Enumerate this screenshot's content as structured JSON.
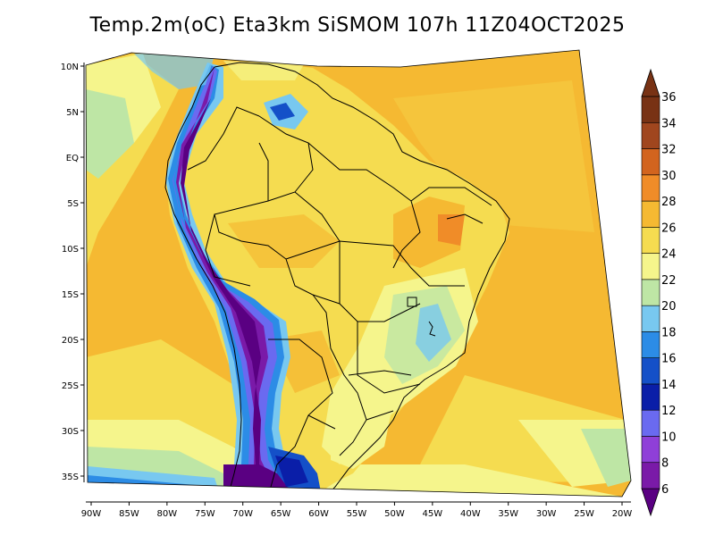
{
  "title": "Temp.2m(oC) Eta3km SiSMOM 107h 11Z04OCT2025",
  "chart_data": {
    "type": "heatmap",
    "title": "Temp.2m(oC) Eta3km SiSMOM 107h 11Z04OCT2025",
    "xlabel": "",
    "ylabel": "",
    "x_range": [
      -91,
      -20
    ],
    "y_range": [
      -38,
      12
    ],
    "x_ticks": [
      {
        "lon": -90,
        "label": "90W"
      },
      {
        "lon": -85,
        "label": "85W"
      },
      {
        "lon": -80,
        "label": "80W"
      },
      {
        "lon": -75,
        "label": "75W"
      },
      {
        "lon": -70,
        "label": "70W"
      },
      {
        "lon": -65,
        "label": "65W"
      },
      {
        "lon": -60,
        "label": "60W"
      },
      {
        "lon": -55,
        "label": "55W"
      },
      {
        "lon": -50,
        "label": "50W"
      },
      {
        "lon": -45,
        "label": "45W"
      },
      {
        "lon": -40,
        "label": "40W"
      },
      {
        "lon": -35,
        "label": "35W"
      },
      {
        "lon": -30,
        "label": "30W"
      },
      {
        "lon": -25,
        "label": "25W"
      },
      {
        "lon": -20,
        "label": "20W"
      }
    ],
    "y_ticks": [
      {
        "lat": 10,
        "label": "10N"
      },
      {
        "lat": 5,
        "label": "5N"
      },
      {
        "lat": 0,
        "label": "EQ"
      },
      {
        "lat": -5,
        "label": "5S"
      },
      {
        "lat": -10,
        "label": "10S"
      },
      {
        "lat": -15,
        "label": "15S"
      },
      {
        "lat": -20,
        "label": "20S"
      },
      {
        "lat": -25,
        "label": "25S"
      },
      {
        "lat": -30,
        "label": "30S"
      },
      {
        "lat": -35,
        "label": "35S"
      }
    ],
    "colorbar": {
      "labels": [
        "6",
        "8",
        "10",
        "12",
        "14",
        "16",
        "18",
        "20",
        "22",
        "24",
        "26",
        "28",
        "30",
        "32",
        "34",
        "36"
      ],
      "colors": [
        "#5a0082",
        "#7a1aa8",
        "#8f3fd8",
        "#6a6af0",
        "#0a1ea8",
        "#1450c8",
        "#2c8ce6",
        "#78c8f0",
        "#bee6a5",
        "#f5f58c",
        "#f5dc50",
        "#f5b932",
        "#f08c28",
        "#d2641e",
        "#a0461e",
        "#783214"
      ]
    }
  }
}
